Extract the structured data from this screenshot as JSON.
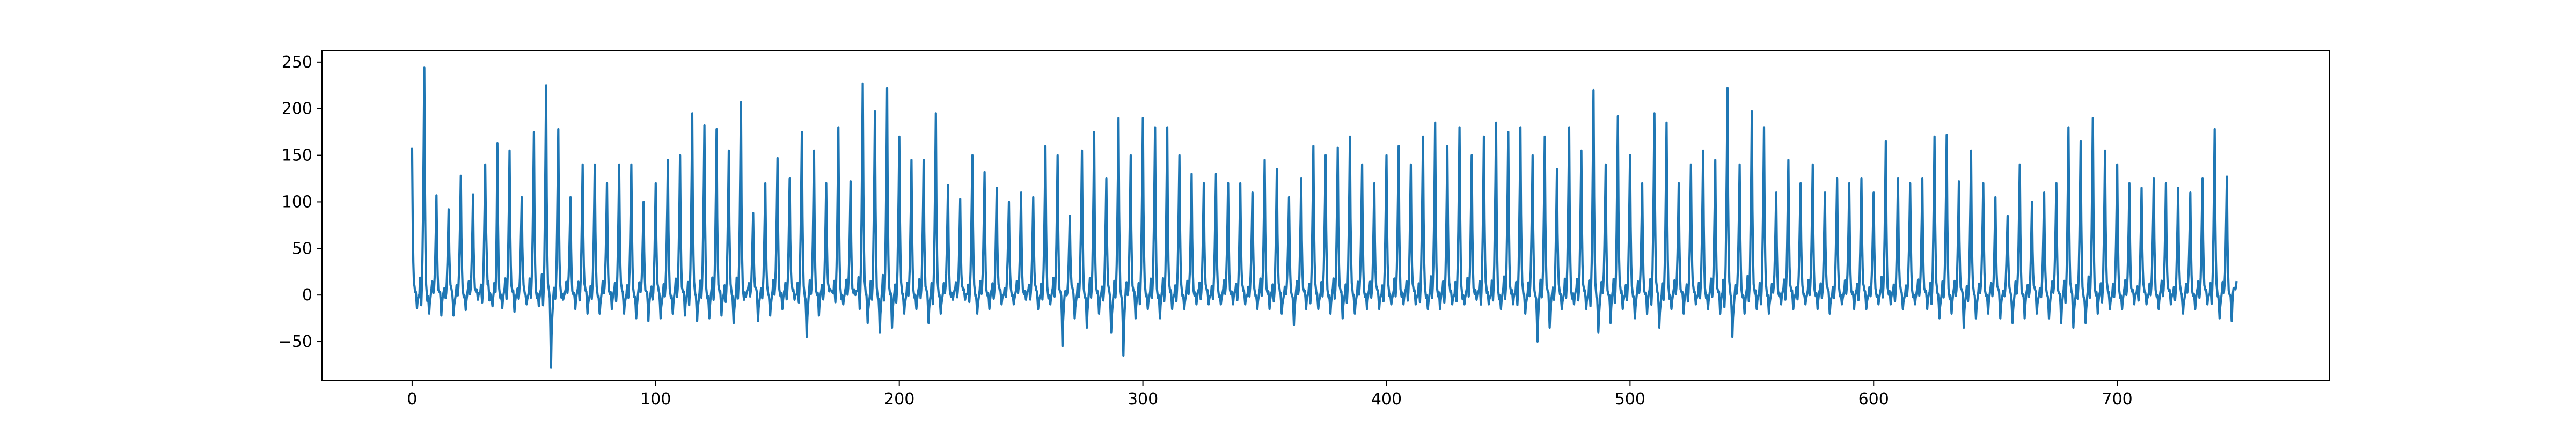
{
  "chart_data": {
    "type": "line",
    "title": "",
    "xlabel": "",
    "ylabel": "",
    "xlim": [
      -37,
      787
    ],
    "ylim": [
      -92,
      262
    ],
    "x_ticks": [
      0,
      100,
      200,
      300,
      400,
      500,
      600,
      700
    ],
    "y_ticks": [
      -50,
      0,
      50,
      100,
      150,
      200,
      250
    ],
    "grid": false,
    "legend": "none",
    "series": [
      {
        "color": "#1f77b4",
        "x_start": 0,
        "x_step": 1,
        "peaks": [
          [
            0,
            158
          ],
          [
            5,
            244
          ],
          [
            10,
            107
          ],
          [
            15,
            92
          ],
          [
            20,
            128
          ],
          [
            25,
            108
          ],
          [
            30,
            140
          ],
          [
            35,
            163
          ],
          [
            40,
            155
          ],
          [
            45,
            105
          ],
          [
            50,
            175
          ],
          [
            55,
            225
          ],
          [
            60,
            178
          ],
          [
            65,
            105
          ],
          [
            70,
            140
          ],
          [
            75,
            140
          ],
          [
            80,
            120
          ],
          [
            85,
            140
          ],
          [
            90,
            140
          ],
          [
            95,
            100
          ],
          [
            100,
            120
          ],
          [
            105,
            145
          ],
          [
            110,
            150
          ],
          [
            115,
            195
          ],
          [
            120,
            182
          ],
          [
            125,
            178
          ],
          [
            130,
            155
          ],
          [
            135,
            207
          ],
          [
            140,
            88
          ],
          [
            145,
            120
          ],
          [
            150,
            147
          ],
          [
            155,
            125
          ],
          [
            160,
            175
          ],
          [
            165,
            155
          ],
          [
            170,
            120
          ],
          [
            175,
            180
          ],
          [
            180,
            122
          ],
          [
            185,
            227
          ],
          [
            190,
            197
          ],
          [
            195,
            222
          ],
          [
            200,
            170
          ],
          [
            205,
            145
          ],
          [
            210,
            145
          ],
          [
            215,
            195
          ],
          [
            220,
            118
          ],
          [
            225,
            103
          ],
          [
            230,
            150
          ],
          [
            235,
            132
          ],
          [
            240,
            115
          ],
          [
            245,
            100
          ],
          [
            250,
            110
          ],
          [
            255,
            105
          ],
          [
            260,
            160
          ],
          [
            265,
            150
          ],
          [
            270,
            85
          ],
          [
            275,
            155
          ],
          [
            280,
            175
          ],
          [
            285,
            125
          ],
          [
            290,
            190
          ],
          [
            295,
            150
          ],
          [
            300,
            190
          ],
          [
            305,
            180
          ],
          [
            310,
            180
          ],
          [
            315,
            150
          ],
          [
            320,
            130
          ],
          [
            325,
            120
          ],
          [
            330,
            130
          ],
          [
            335,
            120
          ],
          [
            340,
            120
          ],
          [
            345,
            110
          ],
          [
            350,
            145
          ],
          [
            355,
            135
          ],
          [
            360,
            105
          ],
          [
            365,
            125
          ],
          [
            370,
            160
          ],
          [
            375,
            150
          ],
          [
            380,
            158
          ],
          [
            385,
            170
          ],
          [
            390,
            140
          ],
          [
            395,
            120
          ],
          [
            400,
            150
          ],
          [
            405,
            160
          ],
          [
            410,
            140
          ],
          [
            415,
            170
          ],
          [
            420,
            185
          ],
          [
            425,
            160
          ],
          [
            430,
            180
          ],
          [
            435,
            150
          ],
          [
            440,
            170
          ],
          [
            445,
            185
          ],
          [
            450,
            175
          ],
          [
            455,
            180
          ],
          [
            460,
            150
          ],
          [
            465,
            170
          ],
          [
            470,
            135
          ],
          [
            475,
            180
          ],
          [
            480,
            155
          ],
          [
            485,
            220
          ],
          [
            490,
            140
          ],
          [
            495,
            192
          ],
          [
            500,
            150
          ],
          [
            505,
            120
          ],
          [
            510,
            195
          ],
          [
            515,
            185
          ],
          [
            520,
            120
          ],
          [
            525,
            140
          ],
          [
            530,
            155
          ],
          [
            535,
            145
          ],
          [
            540,
            222
          ],
          [
            545,
            140
          ],
          [
            550,
            197
          ],
          [
            555,
            180
          ],
          [
            560,
            110
          ],
          [
            565,
            145
          ],
          [
            570,
            120
          ],
          [
            575,
            140
          ],
          [
            580,
            110
          ],
          [
            585,
            125
          ],
          [
            590,
            120
          ],
          [
            595,
            125
          ],
          [
            600,
            110
          ],
          [
            605,
            165
          ],
          [
            610,
            125
          ],
          [
            615,
            120
          ],
          [
            620,
            125
          ],
          [
            625,
            170
          ],
          [
            630,
            172
          ],
          [
            635,
            122
          ],
          [
            640,
            155
          ],
          [
            645,
            120
          ],
          [
            650,
            105
          ],
          [
            655,
            85
          ],
          [
            660,
            140
          ],
          [
            665,
            100
          ],
          [
            670,
            110
          ],
          [
            675,
            120
          ],
          [
            680,
            180
          ],
          [
            685,
            165
          ],
          [
            690,
            190
          ],
          [
            695,
            155
          ],
          [
            700,
            140
          ],
          [
            705,
            120
          ],
          [
            710,
            115
          ],
          [
            715,
            125
          ],
          [
            720,
            120
          ],
          [
            725,
            115
          ],
          [
            730,
            110
          ],
          [
            735,
            125
          ],
          [
            740,
            178
          ],
          [
            745,
            127
          ]
        ],
        "troughs": [
          [
            2,
            -14
          ],
          [
            7,
            -20
          ],
          [
            12,
            -22
          ],
          [
            17,
            -22
          ],
          [
            22,
            -16
          ],
          [
            27,
            -5
          ],
          [
            33,
            -12
          ],
          [
            37,
            -14
          ],
          [
            42,
            -18
          ],
          [
            47,
            -10
          ],
          [
            52,
            -12
          ],
          [
            57,
            -78
          ],
          [
            62,
            -5
          ],
          [
            67,
            -15
          ],
          [
            72,
            -20
          ],
          [
            77,
            -20
          ],
          [
            82,
            -15
          ],
          [
            87,
            -20
          ],
          [
            92,
            -25
          ],
          [
            97,
            -28
          ],
          [
            102,
            -25
          ],
          [
            107,
            -20
          ],
          [
            112,
            -22
          ],
          [
            117,
            -28
          ],
          [
            122,
            -25
          ],
          [
            127,
            -22
          ],
          [
            132,
            -30
          ],
          [
            137,
            -2
          ],
          [
            142,
            -28
          ],
          [
            147,
            -22
          ],
          [
            152,
            -15
          ],
          [
            157,
            -5
          ],
          [
            162,
            -45
          ],
          [
            167,
            -22
          ],
          [
            172,
            5
          ],
          [
            177,
            -10
          ],
          [
            182,
            0
          ],
          [
            187,
            -30
          ],
          [
            192,
            -40
          ],
          [
            197,
            -35
          ],
          [
            202,
            -20
          ],
          [
            207,
            -15
          ],
          [
            212,
            -30
          ],
          [
            217,
            -20
          ],
          [
            222,
            -5
          ],
          [
            227,
            -5
          ],
          [
            232,
            -20
          ],
          [
            237,
            -15
          ],
          [
            242,
            -10
          ],
          [
            247,
            -10
          ],
          [
            252,
            -5
          ],
          [
            257,
            -15
          ],
          [
            262,
            -10
          ],
          [
            267,
            -55
          ],
          [
            272,
            -25
          ],
          [
            277,
            -35
          ],
          [
            282,
            -20
          ],
          [
            287,
            -40
          ],
          [
            292,
            -65
          ],
          [
            297,
            -25
          ],
          [
            302,
            -15
          ],
          [
            307,
            -25
          ],
          [
            312,
            -15
          ],
          [
            317,
            -15
          ],
          [
            322,
            -10
          ],
          [
            327,
            -10
          ],
          [
            332,
            -10
          ],
          [
            337,
            -10
          ],
          [
            342,
            -10
          ],
          [
            347,
            -15
          ],
          [
            352,
            -15
          ],
          [
            357,
            -20
          ],
          [
            362,
            -32
          ],
          [
            367,
            -15
          ],
          [
            372,
            -15
          ],
          [
            377,
            -20
          ],
          [
            382,
            -25
          ],
          [
            387,
            -20
          ],
          [
            392,
            -15
          ],
          [
            397,
            -15
          ],
          [
            402,
            -10
          ],
          [
            407,
            -10
          ],
          [
            412,
            -10
          ],
          [
            417,
            -15
          ],
          [
            422,
            -15
          ],
          [
            427,
            -10
          ],
          [
            432,
            -10
          ],
          [
            437,
            -5
          ],
          [
            442,
            -10
          ],
          [
            447,
            -15
          ],
          [
            452,
            -10
          ],
          [
            457,
            -20
          ],
          [
            462,
            -50
          ],
          [
            467,
            -35
          ],
          [
            472,
            -15
          ],
          [
            477,
            -10
          ],
          [
            482,
            -15
          ],
          [
            487,
            -40
          ],
          [
            492,
            -30
          ],
          [
            497,
            -15
          ],
          [
            502,
            -25
          ],
          [
            507,
            -20
          ],
          [
            512,
            -35
          ],
          [
            517,
            -15
          ],
          [
            522,
            -20
          ],
          [
            527,
            -10
          ],
          [
            532,
            -15
          ],
          [
            537,
            -20
          ],
          [
            542,
            -45
          ],
          [
            547,
            -20
          ],
          [
            552,
            -15
          ],
          [
            557,
            -20
          ],
          [
            562,
            -10
          ],
          [
            567,
            -15
          ],
          [
            572,
            -10
          ],
          [
            577,
            -15
          ],
          [
            582,
            -20
          ],
          [
            587,
            -10
          ],
          [
            592,
            -15
          ],
          [
            597,
            -15
          ],
          [
            602,
            -10
          ],
          [
            607,
            -10
          ],
          [
            612,
            -15
          ],
          [
            617,
            -10
          ],
          [
            622,
            -15
          ],
          [
            627,
            -25
          ],
          [
            632,
            -20
          ],
          [
            637,
            -35
          ],
          [
            642,
            -25
          ],
          [
            647,
            -20
          ],
          [
            652,
            -25
          ],
          [
            657,
            -30
          ],
          [
            662,
            -25
          ],
          [
            667,
            -20
          ],
          [
            672,
            -25
          ],
          [
            677,
            -30
          ],
          [
            682,
            -35
          ],
          [
            687,
            -30
          ],
          [
            692,
            -20
          ],
          [
            697,
            -15
          ],
          [
            702,
            -15
          ],
          [
            707,
            -10
          ],
          [
            712,
            -10
          ],
          [
            717,
            -15
          ],
          [
            722,
            -10
          ],
          [
            727,
            -20
          ],
          [
            732,
            -15
          ],
          [
            737,
            -10
          ],
          [
            742,
            -25
          ],
          [
            747,
            -28
          ]
        ],
        "last_point": [
          749,
          15
        ]
      }
    ]
  }
}
